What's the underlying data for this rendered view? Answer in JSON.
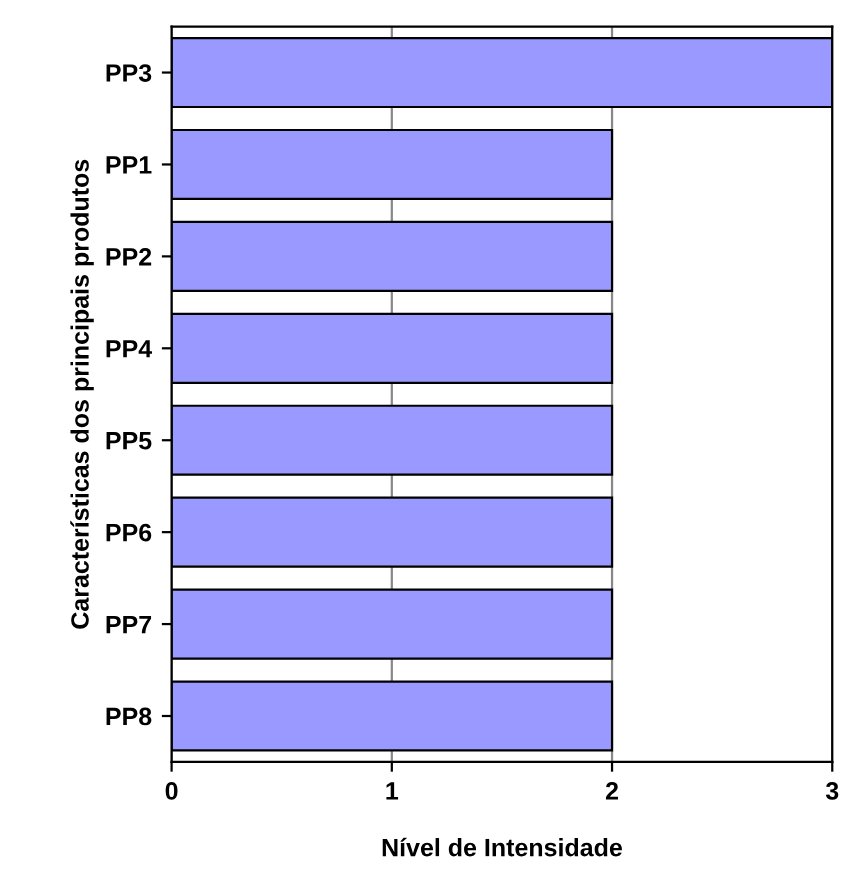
{
  "chart_data": {
    "type": "bar",
    "orientation": "horizontal",
    "xlabel": "Nível de Intensidade",
    "ylabel": "Características dos principais produtos",
    "categories": [
      "PP3",
      "PP1",
      "PP2",
      "PP4",
      "PP5",
      "PP6",
      "PP7",
      "PP8"
    ],
    "values": [
      3,
      2,
      2,
      2,
      2,
      2,
      2,
      2
    ],
    "color": "#9999ff",
    "xlim": [
      0,
      3
    ],
    "xticks": [
      0,
      1,
      2,
      3
    ],
    "grid": "x"
  }
}
